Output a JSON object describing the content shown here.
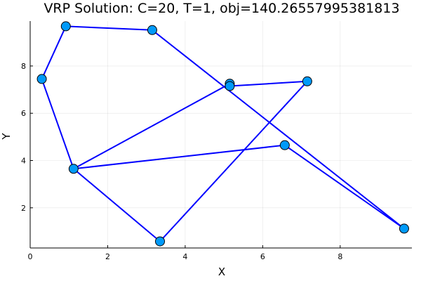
{
  "chart_data": {
    "type": "line",
    "title": "VRP Solution: C=20, T=1, obj=140.26557995381813",
    "xlabel": "X",
    "ylabel": "Y",
    "xlim": [
      0,
      9.85
    ],
    "ylim": [
      0.3,
      9.9
    ],
    "xticks": [
      0,
      2,
      4,
      6,
      8
    ],
    "yticks": [
      2,
      4,
      6,
      8
    ],
    "grid": true,
    "legend": "none",
    "route_color": "#0000ff",
    "node_color": "#009af9",
    "route": [
      {
        "x": 3.35,
        "y": 0.58
      },
      {
        "x": 1.12,
        "y": 3.65
      },
      {
        "x": 0.3,
        "y": 7.45
      },
      {
        "x": 0.92,
        "y": 9.68
      },
      {
        "x": 3.15,
        "y": 9.52
      },
      {
        "x": 9.65,
        "y": 1.12
      },
      {
        "x": 6.57,
        "y": 4.65
      },
      {
        "x": 1.12,
        "y": 3.65
      },
      {
        "x": 5.15,
        "y": 7.25
      },
      {
        "x": 5.15,
        "y": 7.15
      },
      {
        "x": 7.15,
        "y": 7.35
      },
      {
        "x": 3.35,
        "y": 0.58
      }
    ],
    "nodes": [
      {
        "x": 3.35,
        "y": 0.58
      },
      {
        "x": 1.12,
        "y": 3.65
      },
      {
        "x": 0.3,
        "y": 7.45
      },
      {
        "x": 0.92,
        "y": 9.68
      },
      {
        "x": 3.15,
        "y": 9.52
      },
      {
        "x": 9.65,
        "y": 1.12
      },
      {
        "x": 6.57,
        "y": 4.65
      },
      {
        "x": 5.15,
        "y": 7.25
      },
      {
        "x": 5.15,
        "y": 7.15
      },
      {
        "x": 7.15,
        "y": 7.35
      }
    ]
  }
}
